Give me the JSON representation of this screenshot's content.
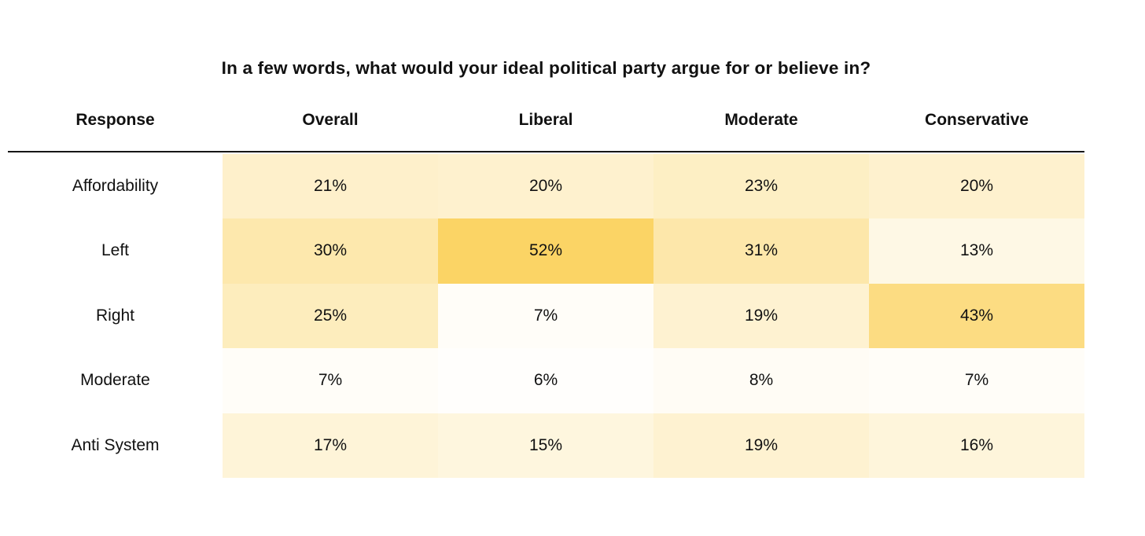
{
  "chart_data": {
    "type": "heatmap",
    "title": "In a few words, what would your ideal political party argue for or believe in?",
    "columns": [
      "Response",
      "Overall",
      "Liberal",
      "Moderate",
      "Conservative"
    ],
    "rows": [
      {
        "label": "Affordability",
        "values": [
          21,
          20,
          23,
          20
        ]
      },
      {
        "label": "Left",
        "values": [
          30,
          52,
          31,
          13
        ]
      },
      {
        "label": "Right",
        "values": [
          25,
          7,
          19,
          43
        ]
      },
      {
        "label": "Moderate",
        "values": [
          7,
          6,
          8,
          7
        ]
      },
      {
        "label": "Anti System",
        "values": [
          17,
          15,
          19,
          16
        ]
      }
    ],
    "unit": "%",
    "value_range": [
      6,
      52
    ],
    "colormap": {
      "min_color": "#FFFFFF",
      "max_color": "#FBD465",
      "domain": [
        5,
        52
      ]
    },
    "text_color": "#111111",
    "header_rule_color": "#161616",
    "background": "#FFFFFF",
    "legend": "none",
    "grid": "off",
    "layout": "title top-center; first column row labels on white; 4 data columns as contiguous heat-shaded bands"
  }
}
